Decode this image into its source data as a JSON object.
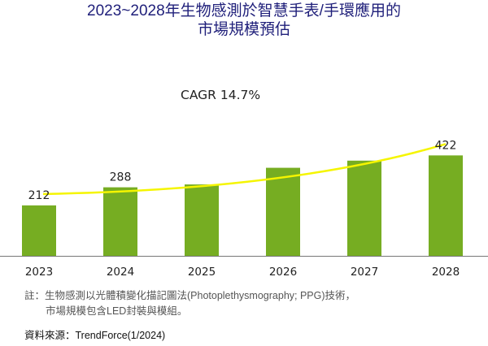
{
  "chart_data": {
    "type": "bar",
    "title_line1": "2023~2028年生物感測於智慧手表/手環應用的",
    "title_line2": "市場規模預估",
    "categories": [
      "2023",
      "2024",
      "2025",
      "2026",
      "2027",
      "2028"
    ],
    "labeled_values": {
      "2023": 212,
      "2024": 288,
      "2028": 422
    },
    "estimated_from_bar_height": {
      "2025": 300,
      "2026": 370,
      "2027": 400
    },
    "estimate_note": "Values for 2025-2027 are not printed on the chart; they are approximations read from bar heights using the scale implied by the labeled bars.",
    "data_labels": [
      {
        "category": "2023",
        "text": "212"
      },
      {
        "category": "2024",
        "text": "288"
      },
      {
        "category": "2028",
        "text": "422"
      }
    ],
    "annotation": "CAGR 14.7%",
    "xlabel": "",
    "ylabel": "",
    "ylim": [
      0,
      450
    ],
    "grid": false,
    "legend": "none",
    "bar_color": "#76ad22",
    "trend_color": "#f5f500"
  },
  "notes": {
    "line1": "註：生物感測以光體積變化描記圖法(Photoplethysmography; PPG)技術，",
    "line2": "市場規模包含LED封裝與模組。"
  },
  "source": "資料來源：TrendForce(1/2024)"
}
